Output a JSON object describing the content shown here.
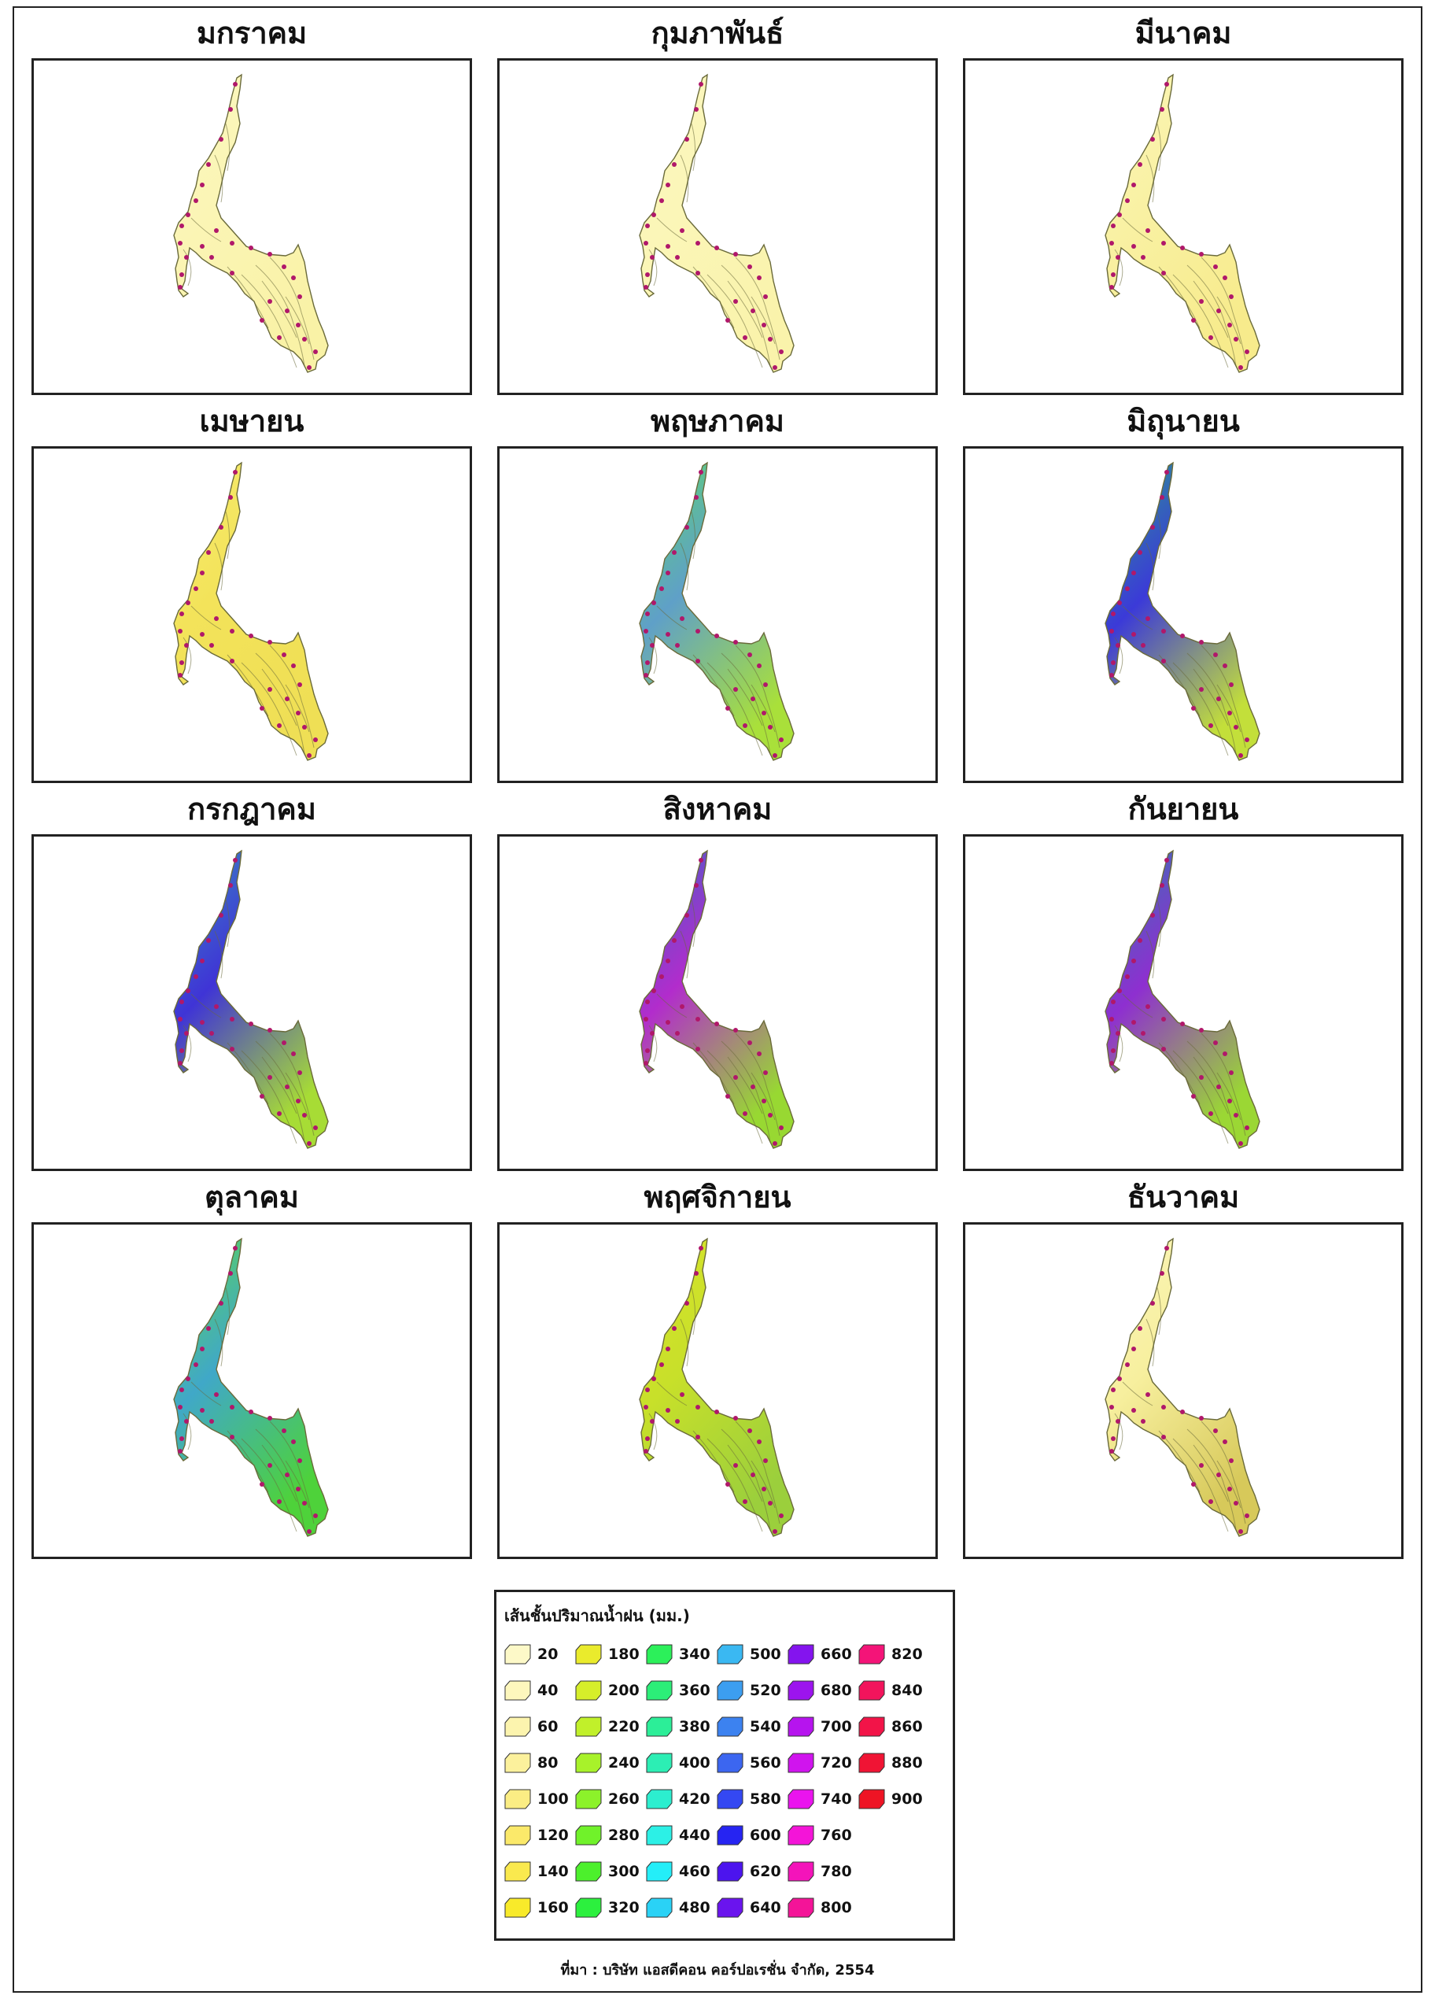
{
  "months": [
    {
      "name": "มกราคม",
      "scheme": "jan"
    },
    {
      "name": "กุมภาพันธ์",
      "scheme": "feb"
    },
    {
      "name": "มีนาคม",
      "scheme": "mar"
    },
    {
      "name": "เมษายน",
      "scheme": "apr"
    },
    {
      "name": "พฤษภาคม",
      "scheme": "may"
    },
    {
      "name": "มิถุนายน",
      "scheme": "jun"
    },
    {
      "name": "กรกฎาคม",
      "scheme": "jul"
    },
    {
      "name": "สิงหาคม",
      "scheme": "aug"
    },
    {
      "name": "กันยายน",
      "scheme": "sep"
    },
    {
      "name": "ตุลาคม",
      "scheme": "oct"
    },
    {
      "name": "พฤศจิกายน",
      "scheme": "nov"
    },
    {
      "name": "ธันวาคม",
      "scheme": "dec"
    }
  ],
  "schemes": {
    "jan": {
      "north": "#fbf7bf",
      "center": "#fbf5b5",
      "south": "#f9f2a6"
    },
    "feb": {
      "north": "#fbf7bf",
      "center": "#fbf6b8",
      "south": "#faf3ab"
    },
    "mar": {
      "north": "#fbf6b8",
      "center": "#f9f1a3",
      "south": "#f7eb8c"
    },
    "apr": {
      "north": "#f6eb6e",
      "center": "#f3e35a",
      "south": "#efdf55"
    },
    "may": {
      "north": "#5ed86a",
      "center": "#5fa0c8",
      "south": "#a9e03a"
    },
    "jun": {
      "north": "#2aa08a",
      "center": "#3b3ad8",
      "south": "#c3df3a"
    },
    "jul": {
      "north": "#3a8cc0",
      "center": "#3f34d6",
      "south": "#a7dc35"
    },
    "aug": {
      "north": "#3d62c8",
      "center": "#b22ccc",
      "south": "#98d832"
    },
    "sep": {
      "north": "#2e7ab2",
      "center": "#8e2fd0",
      "south": "#9bd734"
    },
    "oct": {
      "north": "#5ed84a",
      "center": "#40a8c8",
      "south": "#4ed23a"
    },
    "nov": {
      "north": "#d9e32a",
      "center": "#c8e02a",
      "south": "#9bcf3c"
    },
    "dec": {
      "north": "#fbf6bc",
      "center": "#f7ef9e",
      "south": "#d7c95a"
    }
  },
  "legend": {
    "title": "เส้นชั้นปริมาณน้ำฝน (มม.)",
    "items": [
      {
        "label": "20",
        "color": "#fdf9c8"
      },
      {
        "label": "40",
        "color": "#fdf7bd"
      },
      {
        "label": "60",
        "color": "#fcf4ae"
      },
      {
        "label": "80",
        "color": "#fcf19c"
      },
      {
        "label": "100",
        "color": "#fbed84"
      },
      {
        "label": "120",
        "color": "#fbe96a"
      },
      {
        "label": "140",
        "color": "#fae94e"
      },
      {
        "label": "160",
        "color": "#f8ea2a"
      },
      {
        "label": "180",
        "color": "#eaeb2c"
      },
      {
        "label": "200",
        "color": "#d6ee2a"
      },
      {
        "label": "220",
        "color": "#c1f02a"
      },
      {
        "label": "240",
        "color": "#a8f22a"
      },
      {
        "label": "260",
        "color": "#8cf22a"
      },
      {
        "label": "280",
        "color": "#70f22a"
      },
      {
        "label": "300",
        "color": "#4cf02c"
      },
      {
        "label": "320",
        "color": "#2cf03e"
      },
      {
        "label": "340",
        "color": "#2cf05a"
      },
      {
        "label": "360",
        "color": "#2cee78"
      },
      {
        "label": "380",
        "color": "#2cee98"
      },
      {
        "label": "400",
        "color": "#2ceeb4"
      },
      {
        "label": "420",
        "color": "#2ceecf"
      },
      {
        "label": "440",
        "color": "#2cf0e6"
      },
      {
        "label": "460",
        "color": "#24eef8"
      },
      {
        "label": "480",
        "color": "#2ad2f6"
      },
      {
        "label": "500",
        "color": "#3ab8f2"
      },
      {
        "label": "520",
        "color": "#3c9ef0"
      },
      {
        "label": "540",
        "color": "#3c82f0"
      },
      {
        "label": "560",
        "color": "#3c66f0"
      },
      {
        "label": "580",
        "color": "#3448f2"
      },
      {
        "label": "600",
        "color": "#2624f2"
      },
      {
        "label": "620",
        "color": "#4c14ee"
      },
      {
        "label": "640",
        "color": "#6a14ee"
      },
      {
        "label": "660",
        "color": "#8414ee"
      },
      {
        "label": "680",
        "color": "#9c14ee"
      },
      {
        "label": "700",
        "color": "#b614ee"
      },
      {
        "label": "720",
        "color": "#d014ee"
      },
      {
        "label": "740",
        "color": "#ea14ee"
      },
      {
        "label": "760",
        "color": "#f414d8"
      },
      {
        "label": "780",
        "color": "#f414ba"
      },
      {
        "label": "800",
        "color": "#f41498"
      },
      {
        "label": "820",
        "color": "#f41478"
      },
      {
        "label": "840",
        "color": "#f2145c"
      },
      {
        "label": "860",
        "color": "#f21448"
      },
      {
        "label": "880",
        "color": "#f01434"
      },
      {
        "label": "900",
        "color": "#ee1424"
      }
    ]
  },
  "source": "ที่มา : บริษัท แอสดีคอน คอร์ปอเรชั่น จำกัด, 2554",
  "station_color": "#b0186a",
  "outline_color": "#6a6a3a"
}
